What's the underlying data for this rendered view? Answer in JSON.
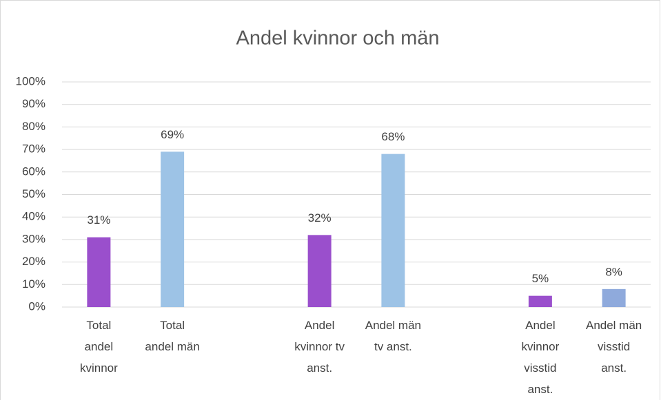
{
  "chart_data": {
    "type": "bar",
    "title": "Andel kvinnor och män",
    "categories": [
      "Total andel kvinnor",
      "Total andel män",
      null,
      "Andel kvinnor tv anst.",
      "Andel män tv anst.",
      null,
      "Andel kvinnor visstid anst.",
      "Andel män visstid anst."
    ],
    "values": [
      31,
      69,
      null,
      32,
      68,
      null,
      5,
      8
    ],
    "value_labels": [
      "31%",
      "69%",
      null,
      "32%",
      "68%",
      null,
      "5%",
      "8%"
    ],
    "colors": [
      "#9a4fcc",
      "#9dc3e6",
      null,
      "#9a4fcc",
      "#9dc3e6",
      null,
      "#9a4fcc",
      "#8faadc"
    ],
    "ylim": [
      0,
      100
    ],
    "yticks": [
      {
        "value": 0,
        "label": "0%"
      },
      {
        "value": 10,
        "label": "10%"
      },
      {
        "value": 20,
        "label": "20%"
      },
      {
        "value": 30,
        "label": "30%"
      },
      {
        "value": 40,
        "label": "40%"
      },
      {
        "value": 50,
        "label": "50%"
      },
      {
        "value": 60,
        "label": "60%"
      },
      {
        "value": 70,
        "label": "70%"
      },
      {
        "value": 80,
        "label": "80%"
      },
      {
        "value": 90,
        "label": "90%"
      },
      {
        "value": 100,
        "label": "100%"
      }
    ],
    "grid": true
  }
}
